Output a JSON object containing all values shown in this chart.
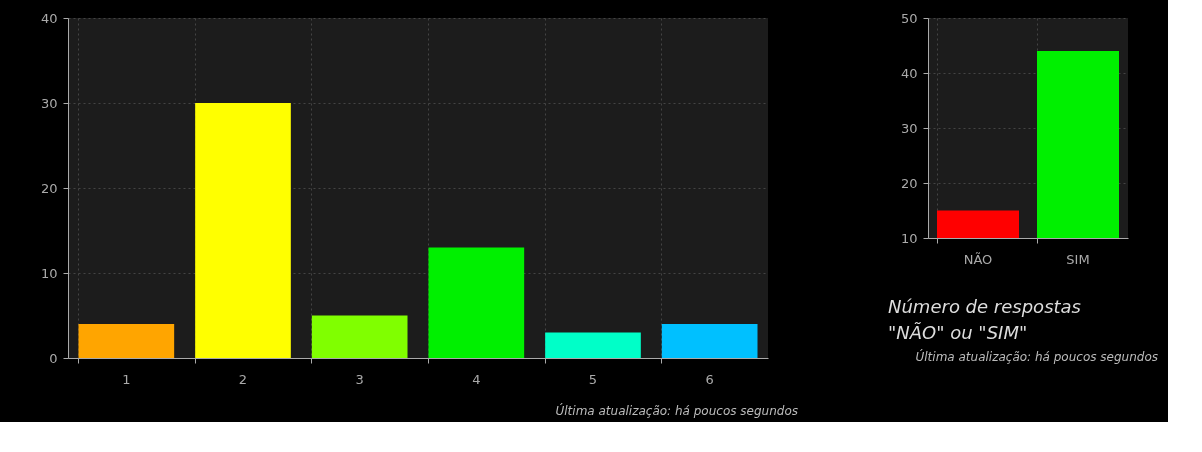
{
  "chart_data": [
    {
      "type": "bar",
      "categories": [
        "1",
        "2",
        "3",
        "4",
        "5",
        "6"
      ],
      "values": [
        4,
        30,
        5,
        13,
        3,
        4
      ],
      "colors": [
        "#ffa500",
        "#ffff00",
        "#80ff00",
        "#00f000",
        "#00ffc8",
        "#00c0ff"
      ],
      "ylim": [
        0,
        40
      ],
      "yticks": [
        0,
        10,
        20,
        30,
        40
      ],
      "grid": true,
      "annotations": [
        "Última atualização: há poucos segundos"
      ]
    },
    {
      "type": "bar",
      "title": "Número de respostas \"NÃO\" ou \"SIM\"",
      "categories": [
        "NÃO",
        "SIM"
      ],
      "values": [
        15,
        44
      ],
      "colors": [
        "#ff0000",
        "#00f000"
      ],
      "ylim": [
        10,
        50
      ],
      "yticks": [
        10,
        20,
        30,
        40,
        50
      ],
      "grid": true,
      "annotations": [
        "Última atualização: há poucos segundos"
      ]
    }
  ]
}
